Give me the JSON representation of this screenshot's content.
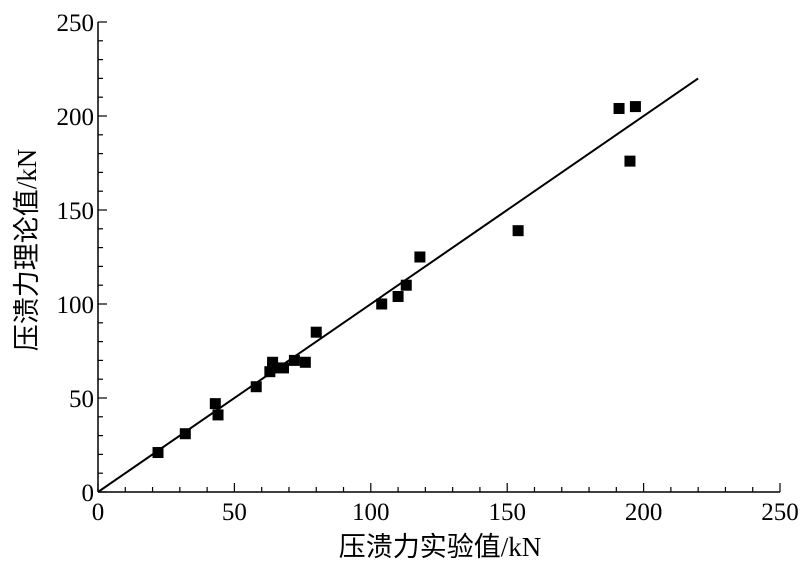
{
  "chart_data": {
    "type": "scatter",
    "title": "",
    "xlabel": "压溃力实验值/kN",
    "ylabel": "压溃力理论值/kN",
    "xlim": [
      0,
      250
    ],
    "ylim": [
      0,
      250
    ],
    "xticks": [
      0,
      50,
      100,
      150,
      200,
      250
    ],
    "yticks": [
      0,
      50,
      100,
      150,
      200,
      250
    ],
    "grid": false,
    "legend": "none",
    "marker": "square",
    "color": "#000000",
    "points": [
      {
        "x": 22,
        "y": 21
      },
      {
        "x": 32,
        "y": 31
      },
      {
        "x": 43,
        "y": 47
      },
      {
        "x": 44,
        "y": 41
      },
      {
        "x": 58,
        "y": 56
      },
      {
        "x": 63,
        "y": 64
      },
      {
        "x": 64,
        "y": 69
      },
      {
        "x": 64,
        "y": 66
      },
      {
        "x": 68,
        "y": 66
      },
      {
        "x": 72,
        "y": 70
      },
      {
        "x": 76,
        "y": 69
      },
      {
        "x": 80,
        "y": 85
      },
      {
        "x": 104,
        "y": 100
      },
      {
        "x": 110,
        "y": 104
      },
      {
        "x": 113,
        "y": 110
      },
      {
        "x": 118,
        "y": 125
      },
      {
        "x": 154,
        "y": 139
      },
      {
        "x": 191,
        "y": 204
      },
      {
        "x": 195,
        "y": 176
      },
      {
        "x": 197,
        "y": 205
      }
    ],
    "fit_line": {
      "x": [
        0,
        220
      ],
      "y": [
        0,
        220
      ]
    }
  }
}
